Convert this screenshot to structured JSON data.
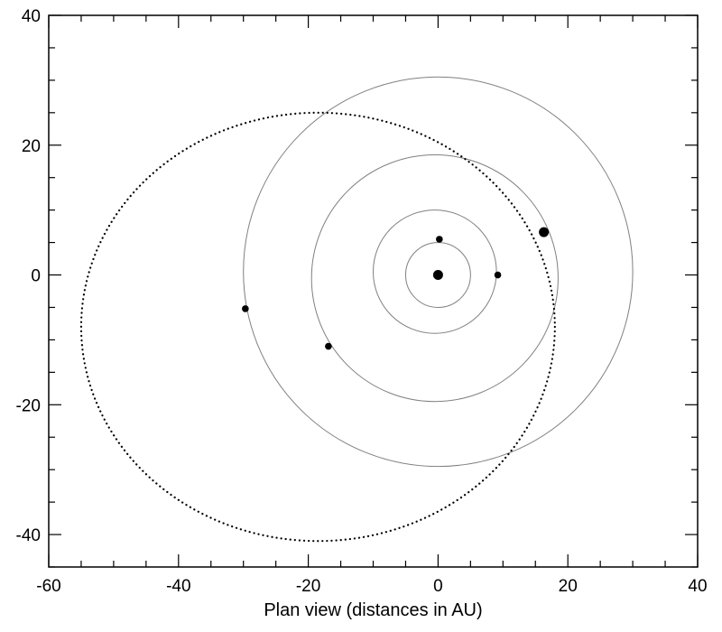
{
  "chart_data": {
    "type": "scatter",
    "title": "",
    "xlabel": "Plan view (distances in AU)",
    "ylabel": "",
    "xlim": [
      -60,
      40
    ],
    "ylim": [
      -45,
      40
    ],
    "x_ticks": [
      -60,
      -40,
      -20,
      0,
      20,
      40
    ],
    "y_ticks": [
      -40,
      -20,
      0,
      20,
      40
    ],
    "x_minor_step": 5,
    "y_minor_step": 5,
    "grid": false,
    "legend": "none",
    "orbit_color": "#808080",
    "dotted_color": "#000000",
    "orbits": [
      {
        "cx": 0,
        "cy": 0,
        "radius": 5
      },
      {
        "cx": -0.5,
        "cy": 0.5,
        "radius": 9.5
      },
      {
        "cx": -0.5,
        "cy": -0.5,
        "radius": 19
      },
      {
        "cx": 0,
        "cy": 0.5,
        "radius": 30
      }
    ],
    "dotted_orbit": {
      "cx": -18.5,
      "cy": -8,
      "rx": 36.5,
      "ry": 33,
      "rotation_deg": 0
    },
    "bodies": [
      {
        "x": 0,
        "y": 0,
        "size": "large"
      },
      {
        "x": 0.2,
        "y": 5.5,
        "size": "small"
      },
      {
        "x": 9.2,
        "y": 0,
        "size": "small"
      },
      {
        "x": 16.3,
        "y": 6.6,
        "size": "large"
      },
      {
        "x": -16.9,
        "y": -11,
        "size": "small"
      },
      {
        "x": -29.7,
        "y": -5.2,
        "size": "small"
      }
    ]
  }
}
